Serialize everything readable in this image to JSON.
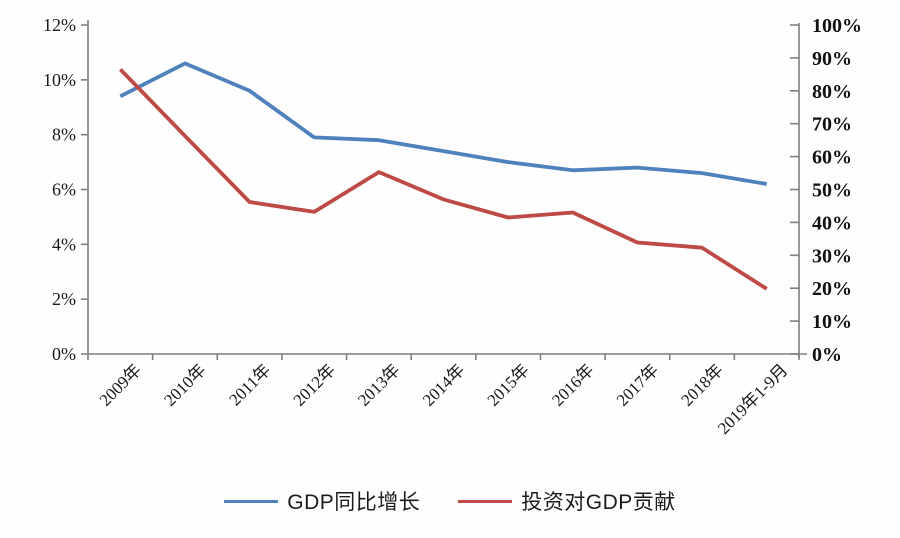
{
  "page": {
    "background_color": "#ffffff",
    "title": ""
  },
  "chart_data": {
    "type": "line",
    "title": "",
    "xlabel": "",
    "ylabel_left": "",
    "ylabel_right": "",
    "grid": false,
    "legend_position": "bottom",
    "axis_color": "#7f7f7f",
    "label_color": "#1a1a1a",
    "categories": [
      "2009年",
      "2010年",
      "2011年",
      "2012年",
      "2013年",
      "2014年",
      "2015年",
      "2016年",
      "2017年",
      "2018年",
      "2019年1-9月"
    ],
    "series": [
      {
        "name": "GDP同比增长",
        "axis": "left",
        "color": "#4F81BD",
        "values": [
          9.4,
          10.6,
          9.6,
          7.9,
          7.8,
          7.4,
          7.0,
          6.7,
          6.8,
          6.6,
          6.2
        ]
      },
      {
        "name": "投资对GDP贡献",
        "axis": "right",
        "color": "#BE4A45",
        "values": [
          86.5,
          66.3,
          46.2,
          43.2,
          55.3,
          47.0,
          41.5,
          43.0,
          33.9,
          32.3,
          19.8
        ]
      }
    ],
    "left_axis": {
      "min": 0,
      "max": 12,
      "step": 2,
      "tick_labels": [
        "12%",
        "10%",
        "8%",
        "6%",
        "4%",
        "2%",
        "0%"
      ]
    },
    "right_axis": {
      "min": 0,
      "max": 100,
      "step": 10,
      "tick_labels": [
        "100%",
        "90%",
        "80%",
        "70%",
        "60%",
        "50%",
        "40%",
        "30%",
        "20%",
        "10%",
        "0%"
      ]
    }
  }
}
